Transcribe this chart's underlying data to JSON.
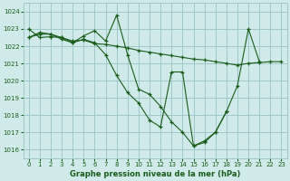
{
  "title": "Graphe pression niveau de la mer (hPa)",
  "bg_color": "#d0eaea",
  "grid_color": "#a0c8c8",
  "line_color": "#1a5c1a",
  "ylim": [
    1015.5,
    1024.5
  ],
  "yticks": [
    1016,
    1017,
    1018,
    1019,
    1020,
    1021,
    1022,
    1023,
    1024
  ],
  "xlim": [
    -0.5,
    23.5
  ],
  "xticks": [
    0,
    1,
    2,
    3,
    4,
    5,
    6,
    7,
    8,
    9,
    10,
    11,
    12,
    13,
    14,
    15,
    16,
    17,
    18,
    19,
    20,
    21,
    22,
    23
  ],
  "series": [
    {
      "x": [
        0,
        1,
        2,
        3,
        4,
        5,
        6,
        7,
        8,
        9,
        10,
        11,
        12,
        13,
        14,
        15,
        16,
        17,
        18,
        19,
        20,
        21,
        22,
        23
      ],
      "y": [
        1023.0,
        1022.5,
        1022.55,
        1022.5,
        1022.3,
        1022.35,
        1022.15,
        1022.1,
        1022.0,
        1021.9,
        1021.75,
        1021.65,
        1021.55,
        1021.45,
        1021.35,
        1021.25,
        1021.2,
        1021.1,
        1021.0,
        1020.9,
        1021.0,
        1021.05,
        1021.1,
        1021.1
      ]
    },
    {
      "x": [
        0,
        1,
        2,
        3,
        4,
        5,
        6,
        7,
        8,
        9,
        10,
        11,
        12,
        13,
        14,
        15,
        16,
        17,
        18,
        19,
        20,
        21
      ],
      "y": [
        1022.5,
        1022.8,
        1022.7,
        1022.5,
        1022.2,
        1022.6,
        1022.9,
        1022.3,
        1023.8,
        1021.5,
        1019.5,
        1019.2,
        1018.5,
        1017.6,
        1017.0,
        1016.2,
        1016.4,
        1017.0,
        1018.2,
        1019.7,
        1023.0,
        1021.1
      ]
    },
    {
      "x": [
        0,
        1,
        2,
        3,
        4,
        5,
        6,
        7,
        8,
        9,
        10,
        11,
        12,
        13,
        14,
        15,
        16,
        17,
        18
      ],
      "y": [
        1022.5,
        1022.7,
        1022.7,
        1022.4,
        1022.2,
        1022.4,
        1022.2,
        1021.5,
        1020.3,
        1019.3,
        1018.7,
        1017.7,
        1017.3,
        1020.5,
        1020.5,
        1016.2,
        1016.5,
        1017.0,
        1018.2
      ]
    }
  ]
}
